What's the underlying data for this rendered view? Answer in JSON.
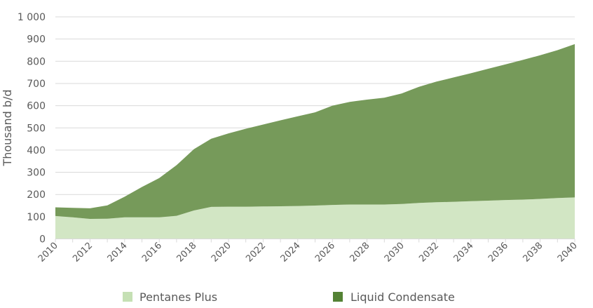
{
  "chart_data": {
    "type": "area",
    "stacked": true,
    "title": "",
    "xlabel": "",
    "ylabel": "Thousand b/d",
    "ylim": [
      0,
      1000
    ],
    "yticks": [
      0,
      100,
      200,
      300,
      400,
      500,
      600,
      700,
      800,
      900,
      1000
    ],
    "ytick_labels": [
      "0",
      "100",
      "200",
      "300",
      "400",
      "500",
      "600",
      "700",
      "800",
      "900",
      "1 000"
    ],
    "xtick_labels": [
      "2010",
      "2012",
      "2014",
      "2016",
      "2018",
      "2020",
      "2022",
      "2024",
      "2026",
      "2028",
      "2030",
      "2032",
      "2034",
      "2036",
      "2038",
      "2040"
    ],
    "grid": true,
    "legend_position": "bottom",
    "x": [
      2010,
      2011,
      2012,
      2013,
      2014,
      2015,
      2016,
      2017,
      2018,
      2019,
      2020,
      2021,
      2022,
      2023,
      2024,
      2025,
      2026,
      2027,
      2028,
      2029,
      2030,
      2031,
      2032,
      2033,
      2034,
      2035,
      2036,
      2037,
      2038,
      2039,
      2040
    ],
    "series": [
      {
        "name": "Pentanes Plus",
        "color": "#d2e6c4",
        "legend_color": "#c5e0b4",
        "values": [
          103,
          97,
          90,
          91,
          97,
          97,
          97,
          104,
          128,
          144,
          145,
          145,
          146,
          147,
          148,
          150,
          153,
          155,
          155,
          155,
          157,
          162,
          165,
          167,
          170,
          172,
          175,
          177,
          180,
          184,
          187
        ]
      },
      {
        "name": "Liquid Condensate",
        "color": "#769a5a",
        "legend_color": "#548235",
        "values": [
          39,
          43,
          48,
          60,
          93,
          137,
          177,
          228,
          276,
          307,
          330,
          351,
          369,
          387,
          404,
          420,
          447,
          462,
          472,
          481,
          498,
          523,
          543,
          560,
          576,
          594,
          611,
          629,
          647,
          666,
          690
        ]
      }
    ]
  }
}
